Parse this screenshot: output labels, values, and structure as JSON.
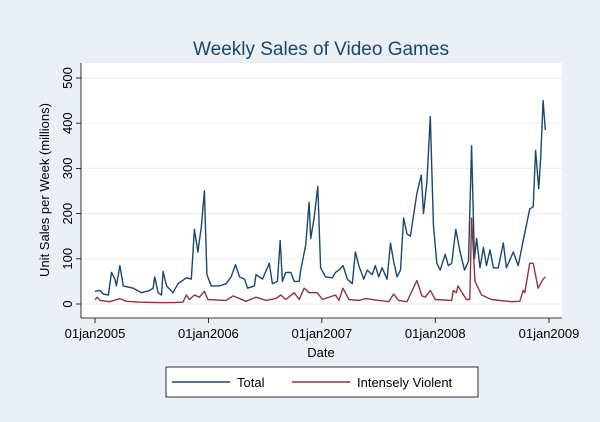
{
  "chart_data": {
    "type": "line",
    "title": "Weekly Sales of Video Games",
    "xlabel": "Date",
    "ylabel": "Unit Sales per Week (millions)",
    "ylim": [
      0,
      500
    ],
    "yticks": [
      0,
      100,
      200,
      300,
      400,
      500
    ],
    "xlim": [
      "2005-01-01",
      "2009-01-01"
    ],
    "xticks": [
      {
        "date": "2005-01-01",
        "label": "01jan2005"
      },
      {
        "date": "2006-01-01",
        "label": "01jan2006"
      },
      {
        "date": "2007-01-01",
        "label": "01jan2007"
      },
      {
        "date": "2008-01-01",
        "label": "01jan2008"
      },
      {
        "date": "2009-01-01",
        "label": "01jan2009"
      }
    ],
    "grid": true,
    "legend_position": "bottom",
    "colors": {
      "background": "#eaf0f5",
      "plot": "#ffffff",
      "title": "#1a476f",
      "grid": "#eaf0f5"
    },
    "series": [
      {
        "name": "Total",
        "color": "#1a476f",
        "points": [
          [
            "2005-01-01",
            28
          ],
          [
            "2005-01-17",
            30
          ],
          [
            "2005-01-28",
            22
          ],
          [
            "2005-02-13",
            20
          ],
          [
            "2005-02-23",
            70
          ],
          [
            "2005-03-06",
            55
          ],
          [
            "2005-03-11",
            40
          ],
          [
            "2005-03-22",
            85
          ],
          [
            "2005-04-02",
            40
          ],
          [
            "2005-05-04",
            35
          ],
          [
            "2005-05-31",
            25
          ],
          [
            "2005-06-26",
            30
          ],
          [
            "2005-07-07",
            35
          ],
          [
            "2005-07-12",
            60
          ],
          [
            "2005-07-23",
            25
          ],
          [
            "2005-08-03",
            20
          ],
          [
            "2005-08-08",
            72
          ],
          [
            "2005-08-19",
            40
          ],
          [
            "2005-09-09",
            25
          ],
          [
            "2005-09-25",
            45
          ],
          [
            "2005-10-22",
            58
          ],
          [
            "2005-11-07",
            55
          ],
          [
            "2005-11-17",
            165
          ],
          [
            "2005-11-28",
            115
          ],
          [
            "2005-12-03",
            140
          ],
          [
            "2005-12-09",
            170
          ],
          [
            "2005-12-19",
            250
          ],
          [
            "2005-12-27",
            65
          ],
          [
            "2006-01-10",
            40
          ],
          [
            "2006-02-05",
            40
          ],
          [
            "2006-02-27",
            45
          ],
          [
            "2006-03-15",
            60
          ],
          [
            "2006-03-29",
            87
          ],
          [
            "2006-04-11",
            60
          ],
          [
            "2006-04-27",
            55
          ],
          [
            "2006-05-07",
            35
          ],
          [
            "2006-05-29",
            40
          ],
          [
            "2006-06-03",
            65
          ],
          [
            "2006-06-24",
            55
          ],
          [
            "2006-07-16",
            90
          ],
          [
            "2006-07-26",
            45
          ],
          [
            "2006-08-11",
            50
          ],
          [
            "2006-08-20",
            140
          ],
          [
            "2006-08-27",
            50
          ],
          [
            "2006-09-07",
            70
          ],
          [
            "2006-09-23",
            70
          ],
          [
            "2006-10-04",
            50
          ],
          [
            "2006-10-20",
            50
          ],
          [
            "2006-10-25",
            75
          ],
          [
            "2006-11-10",
            130
          ],
          [
            "2006-11-21",
            225
          ],
          [
            "2006-11-26",
            145
          ],
          [
            "2006-12-07",
            190
          ],
          [
            "2006-12-19",
            260
          ],
          [
            "2006-12-28",
            80
          ],
          [
            "2007-01-13",
            60
          ],
          [
            "2007-02-04",
            58
          ],
          [
            "2007-02-14",
            70
          ],
          [
            "2007-02-25",
            75
          ],
          [
            "2007-03-10",
            85
          ],
          [
            "2007-03-24",
            55
          ],
          [
            "2007-04-09",
            45
          ],
          [
            "2007-04-19",
            115
          ],
          [
            "2007-04-30",
            85
          ],
          [
            "2007-05-16",
            55
          ],
          [
            "2007-05-27",
            75
          ],
          [
            "2007-06-12",
            65
          ],
          [
            "2007-06-22",
            85
          ],
          [
            "2007-07-03",
            60
          ],
          [
            "2007-07-14",
            80
          ],
          [
            "2007-07-30",
            55
          ],
          [
            "2007-08-10",
            135
          ],
          [
            "2007-08-20",
            95
          ],
          [
            "2007-08-31",
            60
          ],
          [
            "2007-09-11",
            75
          ],
          [
            "2007-09-21",
            190
          ],
          [
            "2007-10-02",
            155
          ],
          [
            "2007-10-13",
            150
          ],
          [
            "2007-11-03",
            245
          ],
          [
            "2007-11-17",
            285
          ],
          [
            "2007-11-24",
            200
          ],
          [
            "2007-12-05",
            270
          ],
          [
            "2007-12-16",
            415
          ],
          [
            "2007-12-26",
            175
          ],
          [
            "2008-01-06",
            90
          ],
          [
            "2008-01-17",
            75
          ],
          [
            "2008-02-02",
            110
          ],
          [
            "2008-02-12",
            85
          ],
          [
            "2008-02-23",
            90
          ],
          [
            "2008-03-07",
            165
          ],
          [
            "2008-03-21",
            115
          ],
          [
            "2008-04-04",
            75
          ],
          [
            "2008-04-17",
            95
          ],
          [
            "2008-04-27",
            350
          ],
          [
            "2008-05-06",
            100
          ],
          [
            "2008-05-13",
            145
          ],
          [
            "2008-05-24",
            80
          ],
          [
            "2008-06-04",
            125
          ],
          [
            "2008-06-14",
            85
          ],
          [
            "2008-06-25",
            120
          ],
          [
            "2008-07-06",
            80
          ],
          [
            "2008-07-22",
            80
          ],
          [
            "2008-08-07",
            135
          ],
          [
            "2008-08-17",
            80
          ],
          [
            "2008-09-08",
            115
          ],
          [
            "2008-09-24",
            85
          ],
          [
            "2008-10-10",
            140
          ],
          [
            "2008-10-31",
            210
          ],
          [
            "2008-11-11",
            215
          ],
          [
            "2008-11-19",
            340
          ],
          [
            "2008-11-29",
            255
          ],
          [
            "2008-12-05",
            320
          ],
          [
            "2008-12-13",
            450
          ],
          [
            "2008-12-20",
            385
          ]
        ]
      },
      {
        "name": "Intensely Violent",
        "color": "#90353b",
        "points": [
          [
            "2005-01-01",
            10
          ],
          [
            "2005-01-08",
            15
          ],
          [
            "2005-01-17",
            8
          ],
          [
            "2005-02-18",
            5
          ],
          [
            "2005-03-22",
            12
          ],
          [
            "2005-04-12",
            6
          ],
          [
            "2005-05-26",
            4
          ],
          [
            "2005-07-28",
            3
          ],
          [
            "2005-09-09",
            3
          ],
          [
            "2005-10-11",
            4
          ],
          [
            "2005-10-22",
            20
          ],
          [
            "2005-11-01",
            10
          ],
          [
            "2005-11-17",
            20
          ],
          [
            "2005-12-03",
            15
          ],
          [
            "2005-12-19",
            28
          ],
          [
            "2005-12-30",
            10
          ],
          [
            "2006-02-27",
            8
          ],
          [
            "2006-03-21",
            18
          ],
          [
            "2006-05-02",
            6
          ],
          [
            "2006-06-03",
            15
          ],
          [
            "2006-07-06",
            8
          ],
          [
            "2006-08-06",
            12
          ],
          [
            "2006-08-22",
            20
          ],
          [
            "2006-09-07",
            10
          ],
          [
            "2006-10-04",
            25
          ],
          [
            "2006-10-20",
            10
          ],
          [
            "2006-11-05",
            35
          ],
          [
            "2006-11-21",
            25
          ],
          [
            "2006-12-17",
            25
          ],
          [
            "2007-01-03",
            10
          ],
          [
            "2007-02-14",
            20
          ],
          [
            "2007-02-25",
            8
          ],
          [
            "2007-03-10",
            35
          ],
          [
            "2007-03-29",
            10
          ],
          [
            "2007-04-30",
            8
          ],
          [
            "2007-05-22",
            12
          ],
          [
            "2007-07-03",
            8
          ],
          [
            "2007-08-04",
            5
          ],
          [
            "2007-08-20",
            22
          ],
          [
            "2007-09-05",
            8
          ],
          [
            "2007-10-02",
            5
          ],
          [
            "2007-11-03",
            52
          ],
          [
            "2007-11-19",
            18
          ],
          [
            "2007-11-30",
            15
          ],
          [
            "2007-12-16",
            30
          ],
          [
            "2008-01-01",
            10
          ],
          [
            "2008-02-23",
            8
          ],
          [
            "2008-02-28",
            30
          ],
          [
            "2008-03-09",
            25
          ],
          [
            "2008-03-14",
            40
          ],
          [
            "2008-04-10",
            10
          ],
          [
            "2008-04-21",
            10
          ],
          [
            "2008-04-27",
            190
          ],
          [
            "2008-05-08",
            50
          ],
          [
            "2008-05-29",
            20
          ],
          [
            "2008-06-30",
            10
          ],
          [
            "2008-09-03",
            5
          ],
          [
            "2008-09-29",
            6
          ],
          [
            "2008-10-10",
            30
          ],
          [
            "2008-10-15",
            25
          ],
          [
            "2008-10-31",
            90
          ],
          [
            "2008-11-11",
            90
          ],
          [
            "2008-11-27",
            35
          ],
          [
            "2008-12-13",
            55
          ],
          [
            "2008-12-20",
            60
          ]
        ]
      }
    ]
  }
}
